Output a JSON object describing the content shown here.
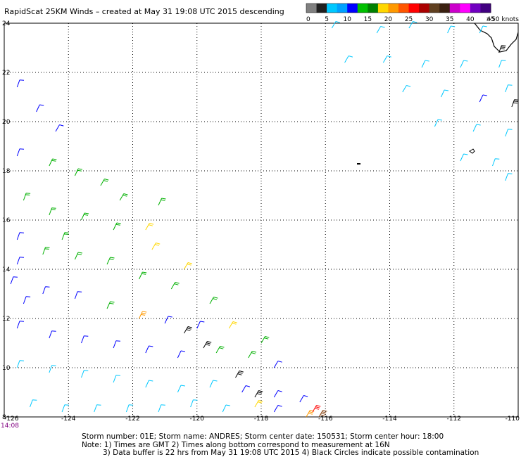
{
  "chart_data": {
    "type": "wind-barb-map",
    "title": "RapidScat 25KM Winds – created at May 31 19:08 UTC 2015 descending",
    "x_ticks": [
      "-126",
      "-124",
      "-122",
      "-120",
      "-118",
      "-116",
      "-114",
      "-112",
      "-110"
    ],
    "y_ticks": [
      "24",
      "22",
      "20",
      "18",
      "16",
      "14",
      "12",
      "10",
      "8"
    ],
    "xlim": [
      -126,
      -110
    ],
    "ylim": [
      8,
      24
    ],
    "grid": true,
    "time_label": "14:08",
    "legend": {
      "placement": "top-right",
      "labels": [
        "0",
        "5",
        "10",
        "15",
        "20",
        "25",
        "30",
        "35",
        "40",
        "45",
        ">50 knots"
      ],
      "colors": [
        "#808080",
        "#202020",
        "#00c8ff",
        "#00a0ff",
        "#0000ff",
        "#00c000",
        "#008000",
        "#ffd700",
        "#ff9900",
        "#ff5500",
        "#ff0000",
        "#aa0000",
        "#604020",
        "#3a2010",
        "#cc00cc",
        "#ff00ff",
        "#7000c0",
        "#400080"
      ]
    },
    "speed_classes": [
      {
        "label": "5-10",
        "color": "#00c8ff"
      },
      {
        "label": "10-15",
        "color": "#0000ff"
      },
      {
        "label": "15-20",
        "color": "#00b000"
      },
      {
        "label": "20-25",
        "color": "#ffd700"
      },
      {
        "label": "25-30",
        "color": "#ff9900"
      },
      {
        "label": "30-35",
        "color": "#ff0000"
      },
      {
        "label": "35-40",
        "color": "#8b4513"
      },
      {
        "label": "rain-flagged",
        "color": "#000000"
      }
    ],
    "barbs": [
      {
        "lon": -125.6,
        "lat": 21.4,
        "speed": 10,
        "dir": 20
      },
      {
        "lon": -125.0,
        "lat": 20.4,
        "speed": 10,
        "dir": 25
      },
      {
        "lon": -124.4,
        "lat": 19.6,
        "speed": 12,
        "dir": 30
      },
      {
        "lon": -125.6,
        "lat": 18.6,
        "speed": 14,
        "dir": 20
      },
      {
        "lon": -124.6,
        "lat": 18.2,
        "speed": 15,
        "dir": 25
      },
      {
        "lon": -123.8,
        "lat": 17.8,
        "speed": 16,
        "dir": 25
      },
      {
        "lon": -123.0,
        "lat": 17.4,
        "speed": 17,
        "dir": 30
      },
      {
        "lon": -122.4,
        "lat": 16.8,
        "speed": 17,
        "dir": 30
      },
      {
        "lon": -125.4,
        "lat": 16.8,
        "speed": 15,
        "dir": 20
      },
      {
        "lon": -124.6,
        "lat": 16.2,
        "speed": 18,
        "dir": 20
      },
      {
        "lon": -123.6,
        "lat": 16.0,
        "speed": 18,
        "dir": 25
      },
      {
        "lon": -122.6,
        "lat": 15.6,
        "speed": 17,
        "dir": 25
      },
      {
        "lon": -121.6,
        "lat": 15.6,
        "speed": 21,
        "dir": 30
      },
      {
        "lon": -121.4,
        "lat": 14.8,
        "speed": 22,
        "dir": 30
      },
      {
        "lon": -120.4,
        "lat": 14.0,
        "speed": 21,
        "dir": 30
      },
      {
        "lon": -125.6,
        "lat": 15.2,
        "speed": 14,
        "dir": 20
      },
      {
        "lon": -124.8,
        "lat": 14.6,
        "speed": 16,
        "dir": 20
      },
      {
        "lon": -123.8,
        "lat": 14.4,
        "speed": 17,
        "dir": 25
      },
      {
        "lon": -122.8,
        "lat": 14.2,
        "speed": 17,
        "dir": 25
      },
      {
        "lon": -121.8,
        "lat": 13.6,
        "speed": 16,
        "dir": 25
      },
      {
        "lon": -120.8,
        "lat": 13.2,
        "speed": 16,
        "dir": 30
      },
      {
        "lon": -119.6,
        "lat": 12.6,
        "speed": 18,
        "dir": 30
      },
      {
        "lon": -125.8,
        "lat": 13.4,
        "speed": 12,
        "dir": 20
      },
      {
        "lon": -124.8,
        "lat": 13.0,
        "speed": 13,
        "dir": 20
      },
      {
        "lon": -123.8,
        "lat": 12.8,
        "speed": 14,
        "dir": 20
      },
      {
        "lon": -122.8,
        "lat": 12.4,
        "speed": 15,
        "dir": 25
      },
      {
        "lon": -121.8,
        "lat": 12.0,
        "speed": 28,
        "dir": 25
      },
      {
        "lon": -121.0,
        "lat": 11.8,
        "speed": 13,
        "dir": 25
      },
      {
        "lon": -120.0,
        "lat": 11.6,
        "speed": 13,
        "dir": 25
      },
      {
        "lon": -119.0,
        "lat": 11.6,
        "speed": 22,
        "dir": 30
      },
      {
        "lon": -118.0,
        "lat": 11.0,
        "speed": 18,
        "dir": 30
      },
      {
        "lon": -125.6,
        "lat": 11.6,
        "speed": 11,
        "dir": 20
      },
      {
        "lon": -124.6,
        "lat": 11.2,
        "speed": 11,
        "dir": 20
      },
      {
        "lon": -123.6,
        "lat": 11.0,
        "speed": 12,
        "dir": 20
      },
      {
        "lon": -122.6,
        "lat": 10.8,
        "speed": 12,
        "dir": 20
      },
      {
        "lon": -121.6,
        "lat": 10.6,
        "speed": 11,
        "dir": 25
      },
      {
        "lon": -120.6,
        "lat": 10.4,
        "speed": 10,
        "dir": 25
      },
      {
        "lon": -119.4,
        "lat": 10.6,
        "speed": 17,
        "dir": 30
      },
      {
        "lon": -118.4,
        "lat": 10.4,
        "speed": 16,
        "dir": 30
      },
      {
        "lon": -117.6,
        "lat": 10.0,
        "speed": 12,
        "dir": 30
      },
      {
        "lon": -125.6,
        "lat": 10.0,
        "speed": 8,
        "dir": 20
      },
      {
        "lon": -124.6,
        "lat": 9.8,
        "speed": 8,
        "dir": 20
      },
      {
        "lon": -123.6,
        "lat": 9.6,
        "speed": 8,
        "dir": 20
      },
      {
        "lon": -122.6,
        "lat": 9.4,
        "speed": 9,
        "dir": 20
      },
      {
        "lon": -121.6,
        "lat": 9.2,
        "speed": 9,
        "dir": 25
      },
      {
        "lon": -120.6,
        "lat": 9.0,
        "speed": 8,
        "dir": 25
      },
      {
        "lon": -119.6,
        "lat": 9.2,
        "speed": 9,
        "dir": 25
      },
      {
        "lon": -118.6,
        "lat": 9.0,
        "speed": 12,
        "dir": 30
      },
      {
        "lon": -117.6,
        "lat": 8.8,
        "speed": 12,
        "dir": 30
      },
      {
        "lon": -116.8,
        "lat": 8.6,
        "speed": 12,
        "dir": 30
      },
      {
        "lon": -125.2,
        "lat": 8.4,
        "speed": 7,
        "dir": 20
      },
      {
        "lon": -124.2,
        "lat": 8.2,
        "speed": 8,
        "dir": 20
      },
      {
        "lon": -123.2,
        "lat": 8.2,
        "speed": 8,
        "dir": 20
      },
      {
        "lon": -122.2,
        "lat": 8.2,
        "speed": 8,
        "dir": 20
      },
      {
        "lon": -121.2,
        "lat": 8.2,
        "speed": 8,
        "dir": 20
      },
      {
        "lon": -120.2,
        "lat": 8.4,
        "speed": 8,
        "dir": 20
      },
      {
        "lon": -119.2,
        "lat": 8.2,
        "speed": 9,
        "dir": 25
      },
      {
        "lon": -118.2,
        "lat": 8.4,
        "speed": 22,
        "dir": 30
      },
      {
        "lon": -117.6,
        "lat": 8.2,
        "speed": 12,
        "dir": 30
      },
      {
        "lon": -116.6,
        "lat": 8.0,
        "speed": 28,
        "dir": 30
      },
      {
        "lon": -116.4,
        "lat": 8.2,
        "speed": 33,
        "dir": 30
      },
      {
        "lon": -116.2,
        "lat": 8.0,
        "speed": 36,
        "dir": 30
      },
      {
        "lon": -118.2,
        "lat": 8.8,
        "speed": 0,
        "dir": 30,
        "flag": true
      },
      {
        "lon": -118.8,
        "lat": 9.6,
        "speed": 0,
        "dir": 30,
        "flag": true
      },
      {
        "lon": -119.8,
        "lat": 10.8,
        "speed": 0,
        "dir": 30,
        "flag": true
      },
      {
        "lon": -120.4,
        "lat": 11.4,
        "speed": 0,
        "dir": 30,
        "flag": true
      },
      {
        "lon": -125.4,
        "lat": 12.6,
        "speed": 13,
        "dir": 20
      },
      {
        "lon": -125.6,
        "lat": 14.2,
        "speed": 14,
        "dir": 20
      },
      {
        "lon": -124.2,
        "lat": 15.2,
        "speed": 18,
        "dir": 20
      },
      {
        "lon": -121.2,
        "lat": 16.6,
        "speed": 17,
        "dir": 25
      },
      {
        "lon": -115.8,
        "lat": 23.8,
        "speed": 7,
        "dir": 30
      },
      {
        "lon": -114.4,
        "lat": 23.6,
        "speed": 8,
        "dir": 30
      },
      {
        "lon": -113.4,
        "lat": 23.8,
        "speed": 8,
        "dir": 30
      },
      {
        "lon": -112.2,
        "lat": 23.6,
        "speed": 7,
        "dir": 25
      },
      {
        "lon": -111.2,
        "lat": 23.6,
        "speed": 8,
        "dir": 25
      },
      {
        "lon": -115.4,
        "lat": 22.4,
        "speed": 8,
        "dir": 30
      },
      {
        "lon": -114.2,
        "lat": 22.4,
        "speed": 8,
        "dir": 30
      },
      {
        "lon": -113.0,
        "lat": 22.2,
        "speed": 7,
        "dir": 25
      },
      {
        "lon": -111.8,
        "lat": 22.2,
        "speed": 8,
        "dir": 25
      },
      {
        "lon": -110.6,
        "lat": 22.2,
        "speed": 8,
        "dir": 20
      },
      {
        "lon": -113.6,
        "lat": 21.2,
        "speed": 9,
        "dir": 30
      },
      {
        "lon": -112.4,
        "lat": 21.0,
        "speed": 9,
        "dir": 25
      },
      {
        "lon": -111.2,
        "lat": 20.8,
        "speed": 10,
        "dir": 25
      },
      {
        "lon": -110.4,
        "lat": 21.2,
        "speed": 9,
        "dir": 20
      },
      {
        "lon": -112.6,
        "lat": 19.8,
        "speed": 9,
        "dir": 25
      },
      {
        "lon": -111.4,
        "lat": 19.6,
        "speed": 9,
        "dir": 25
      },
      {
        "lon": -110.4,
        "lat": 19.4,
        "speed": 9,
        "dir": 20
      },
      {
        "lon": -111.8,
        "lat": 18.4,
        "speed": 8,
        "dir": 25
      },
      {
        "lon": -110.8,
        "lat": 18.2,
        "speed": 8,
        "dir": 20
      },
      {
        "lon": -110.4,
        "lat": 17.6,
        "speed": 8,
        "dir": 20
      },
      {
        "lon": -110.6,
        "lat": 22.8,
        "speed": 0,
        "dir": 20,
        "flag": true
      },
      {
        "lon": -110.2,
        "lat": 20.6,
        "speed": 0,
        "dir": 20,
        "flag": true
      }
    ]
  },
  "footer": {
    "line1": "Storm number: 01E;  Storm name: ANDRES;  Storm center date: 150531;  Storm center hour: 18:00",
    "line2": "Note: 1) Times are GMT  2) Times along bottom correspond to measurement at 16N",
    "line3": "3) Data buffer is 22 hrs from May 31 19:08 UTC 2015  4) Black Circles indicate possible contamination"
  }
}
